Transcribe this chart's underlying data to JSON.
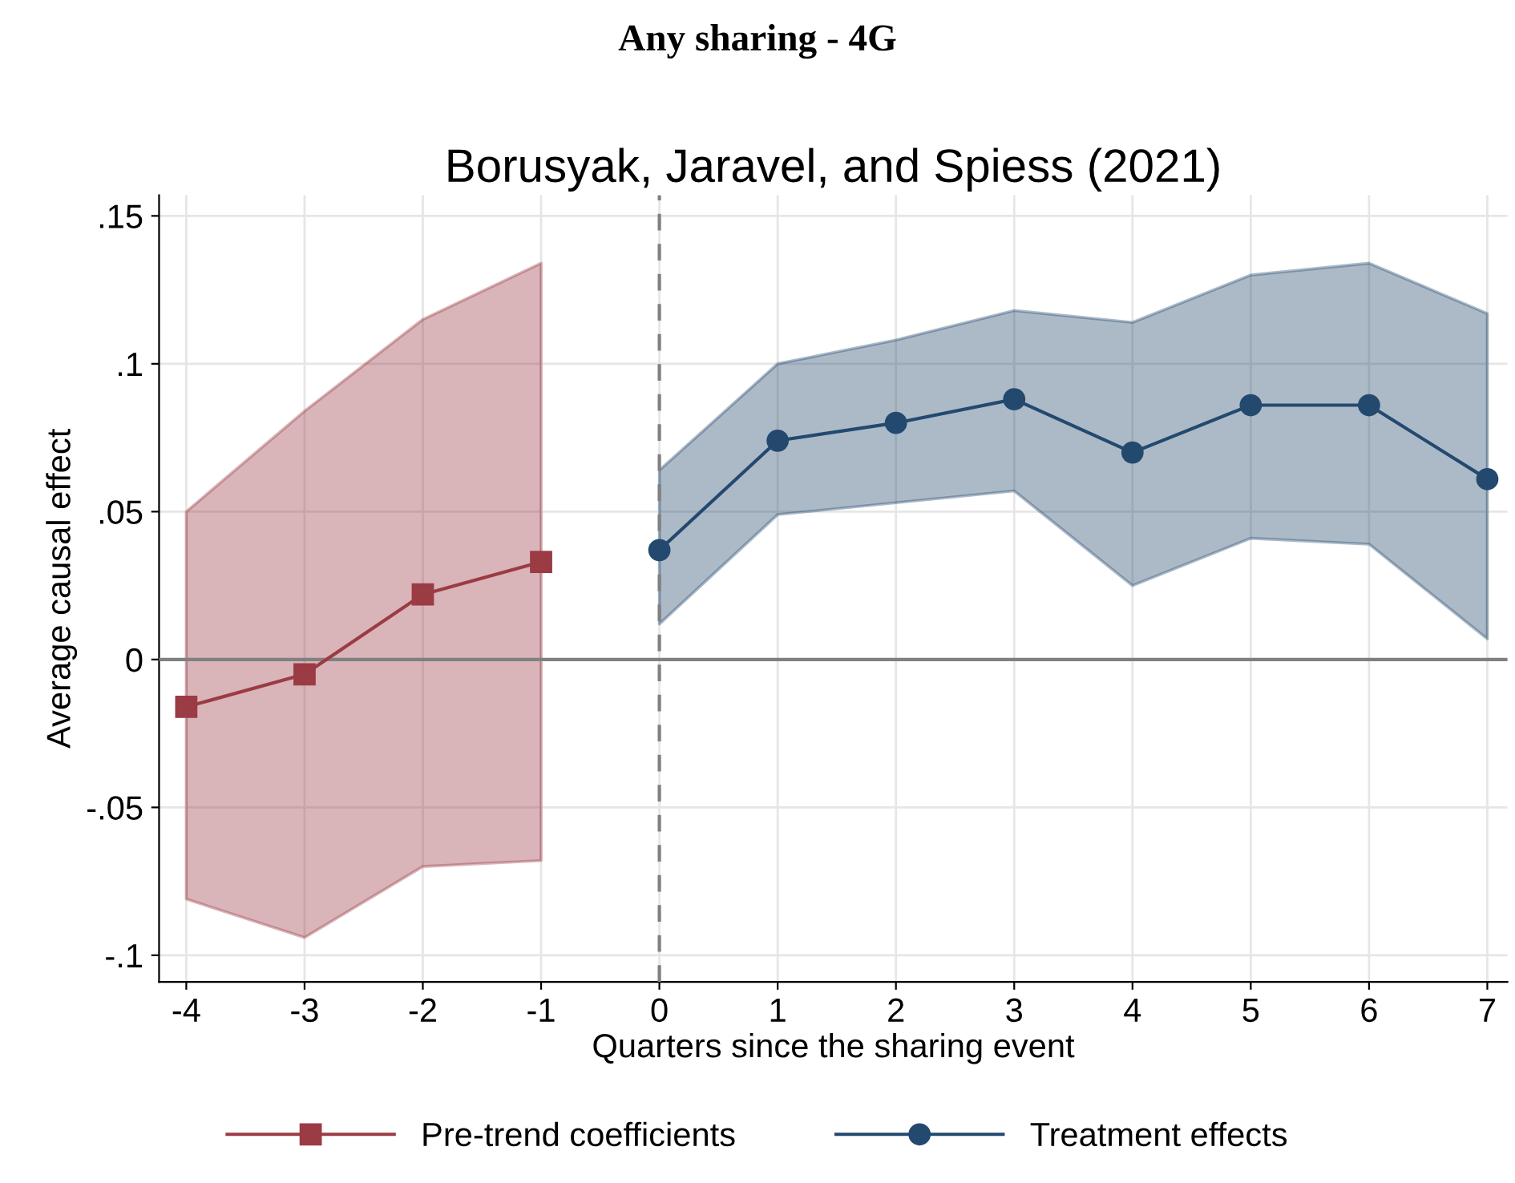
{
  "chart_data": {
    "type": "line",
    "title": "Any sharing - 4G",
    "subtitle": "Borusyak, Jaravel, and Spiess (2021)",
    "xlabel": "Quarters since the sharing event",
    "ylabel": "Average causal effect",
    "series": [
      {
        "name": "Pre-trend coefficients",
        "color": "#9b3b44",
        "marker": "square",
        "x": [
          -4,
          -3,
          -2,
          -1
        ],
        "values": [
          -0.016,
          -0.005,
          0.022,
          0.033
        ],
        "lower": [
          -0.081,
          -0.094,
          -0.07,
          -0.068
        ],
        "upper": [
          0.05,
          0.084,
          0.115,
          0.134
        ]
      },
      {
        "name": "Treatment effects",
        "color": "#24496f",
        "marker": "circle",
        "x": [
          0,
          1,
          2,
          3,
          4,
          5,
          6,
          7
        ],
        "values": [
          0.037,
          0.074,
          0.08,
          0.088,
          0.07,
          0.086,
          0.086,
          0.061
        ],
        "lower": [
          0.012,
          0.049,
          0.053,
          0.057,
          0.025,
          0.041,
          0.039,
          0.007
        ],
        "upper": [
          0.064,
          0.1,
          0.108,
          0.118,
          0.114,
          0.13,
          0.134,
          0.117
        ]
      }
    ],
    "xlim": [
      -4.23,
      7.17
    ],
    "ylim": [
      -0.109,
      0.157
    ],
    "xticks": [
      -4,
      -3,
      -2,
      -1,
      0,
      1,
      2,
      3,
      4,
      5,
      6,
      7
    ],
    "yticks": [
      {
        "value": -0.1,
        "label": "-.1"
      },
      {
        "value": -0.05,
        "label": "-.05"
      },
      {
        "value": 0,
        "label": "0"
      },
      {
        "value": 0.05,
        "label": ".05"
      },
      {
        "value": 0.1,
        "label": ".1"
      },
      {
        "value": 0.15,
        "label": ".15"
      }
    ],
    "ref_lines": [
      {
        "axis": "y",
        "value": 0,
        "color": "#808080",
        "line_style": "solid"
      },
      {
        "axis": "x",
        "value": 0,
        "color": "#808080",
        "line_style": "dashed"
      }
    ],
    "grid": true,
    "legend": "bottom"
  }
}
